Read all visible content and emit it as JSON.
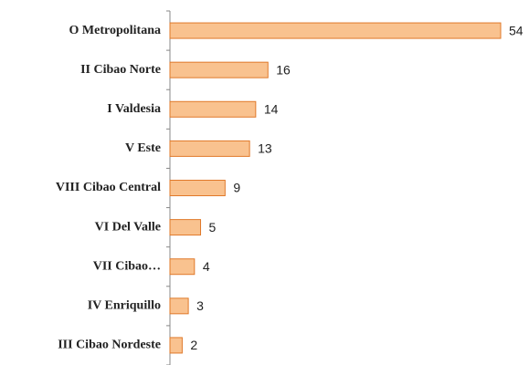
{
  "chart_data": {
    "type": "bar",
    "orientation": "horizontal",
    "categories": [
      "O Metropolitana",
      "II Cibao Norte",
      "I Valdesia",
      "V Este",
      "VIII Cibao Central",
      "VI Del Valle",
      "VII Cibao…",
      "IV Enriquillo",
      "III Cibao Nordeste"
    ],
    "values": [
      54,
      16,
      14,
      13,
      9,
      5,
      4,
      3,
      2
    ],
    "color": "#f9c28f",
    "edge_color": "#e0792a"
  }
}
